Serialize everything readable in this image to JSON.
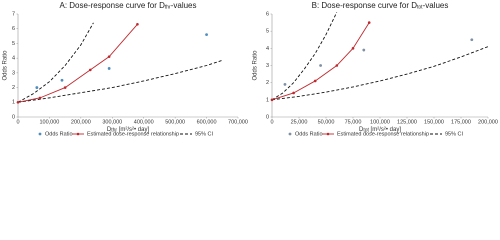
{
  "chart_data": [
    {
      "type": "line",
      "title": [
        "A: Dose-response curve for D",
        "thr",
        "-values"
      ],
      "x_label": [
        "D",
        "thr",
        " [m²/s²• day]"
      ],
      "y_label": "Odds Ratio",
      "xlim": [
        0,
        700000
      ],
      "ylim": [
        0,
        7
      ],
      "xticks": [
        0,
        {
          "value": 100000,
          "label": "100,000"
        },
        {
          "value": 200000,
          "label": "200,000"
        },
        {
          "value": 300000,
          "label": "300,000"
        },
        {
          "value": 400000,
          "label": "400,000"
        },
        {
          "value": 500000,
          "label": "500,000"
        },
        {
          "value": 600000,
          "label": "600,000"
        },
        {
          "value": 700000,
          "label": "700,000"
        }
      ],
      "yticks": [
        0,
        1,
        2,
        3,
        4,
        5,
        6,
        7
      ],
      "scatter": {
        "name": "Odds Ratio",
        "color": "#4f8fbf",
        "x": [
          60000,
          140000,
          290000,
          600000
        ],
        "values": [
          2.0,
          2.5,
          3.3,
          5.6
        ]
      },
      "estimate": {
        "name": "Estimated dose-response relationship",
        "color": "#c0282d",
        "x": [
          0,
          70000,
          150000,
          230000,
          290000,
          380000
        ],
        "values": [
          1.0,
          1.3,
          2.0,
          3.2,
          4.1,
          6.3
        ]
      },
      "ci": {
        "name": "95% CI",
        "color": "#111111",
        "upper": {
          "x": [
            0,
            50000,
            100000,
            150000,
            200000,
            240000
          ],
          "values": [
            1.0,
            1.6,
            2.4,
            3.5,
            4.9,
            6.4
          ]
        },
        "lower": {
          "x": [
            0,
            100000,
            200000,
            300000,
            400000,
            500000,
            600000,
            650000
          ],
          "values": [
            1.0,
            1.3,
            1.65,
            2.0,
            2.45,
            2.95,
            3.5,
            3.85
          ]
        }
      }
    },
    {
      "type": "line",
      "title": [
        "B: Dose-response curve for D",
        "tot",
        "-values"
      ],
      "x_label": [
        "D",
        "tot",
        " [m²/s²• day]"
      ],
      "y_label": "Odds Ratio",
      "xlim": [
        0,
        200000
      ],
      "ylim": [
        0,
        6
      ],
      "xticks": [
        0,
        {
          "value": 25000,
          "label": "25,000"
        },
        {
          "value": 50000,
          "label": "50,000"
        },
        {
          "value": 75000,
          "label": "75,000"
        },
        {
          "value": 100000,
          "label": "100,000"
        },
        {
          "value": 125000,
          "label": "125,000"
        },
        {
          "value": 150000,
          "label": "150,000"
        },
        {
          "value": 175000,
          "label": "175,000"
        },
        {
          "value": 200000,
          "label": "200,000"
        }
      ],
      "yticks": [
        0,
        1,
        2,
        3,
        4,
        5,
        6
      ],
      "scatter": {
        "name": "Odds Ratio",
        "color": "#7f8fa6",
        "x": [
          12000,
          45000,
          85000,
          185000
        ],
        "values": [
          1.9,
          3.0,
          3.9,
          4.5
        ]
      },
      "estimate": {
        "name": "Estimated dose-response relationship",
        "color": "#c0282d",
        "x": [
          0,
          20000,
          40000,
          60000,
          75000,
          90000
        ],
        "values": [
          1.0,
          1.4,
          2.1,
          3.0,
          4.0,
          5.5
        ]
      },
      "ci": {
        "name": "95% CI",
        "color": "#111111",
        "upper": {
          "x": [
            0,
            10000,
            20000,
            30000,
            40000,
            50000,
            60000
          ],
          "values": [
            1.0,
            1.4,
            2.0,
            2.8,
            3.7,
            4.8,
            6.1
          ]
        },
        "lower": {
          "x": [
            0,
            25000,
            50000,
            75000,
            100000,
            125000,
            150000,
            175000,
            200000
          ],
          "values": [
            1.0,
            1.2,
            1.45,
            1.75,
            2.1,
            2.5,
            2.95,
            3.5,
            4.1
          ]
        }
      }
    }
  ]
}
